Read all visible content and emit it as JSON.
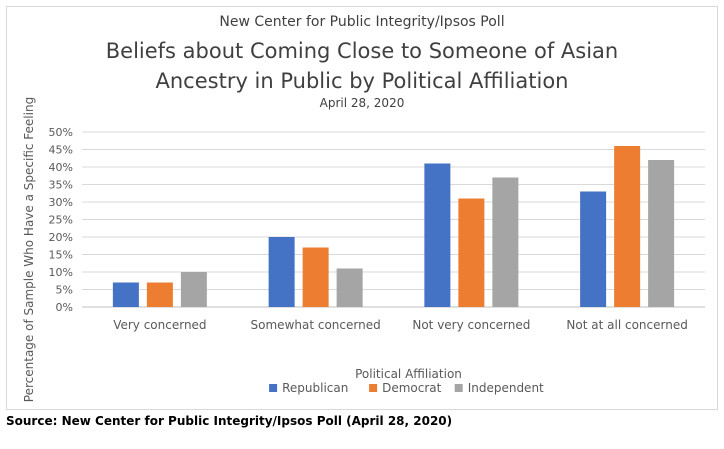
{
  "header": {
    "supertitle": "New Center for Public Integrity/Ipsos Poll",
    "title_line1": "Beliefs about Coming Close to Someone of Asian",
    "title_line2": "Ancestry in Public by Political Affiliation",
    "date": "April 28, 2020"
  },
  "source": "Source: New Center for Public Integrity/Ipsos Poll (April 28, 2020)",
  "chart_data": {
    "type": "bar",
    "title": "Beliefs about Coming Close to Someone of Asian Ancestry in Public by Political Affiliation",
    "subtitle": "April 28, 2020",
    "xlabel": "Political Affiliation",
    "ylabel": "Percentage of Sample Who Have a Specific Feeling",
    "categories": [
      "Very concerned",
      "Somewhat concerned",
      "Not very concerned",
      "Not at all concerned"
    ],
    "series": [
      {
        "name": "Republican",
        "values": [
          7,
          20,
          41,
          33
        ],
        "color": "#4472C4"
      },
      {
        "name": "Democrat",
        "values": [
          7,
          17,
          31,
          46
        ],
        "color": "#ED7D31"
      },
      {
        "name": "Independent",
        "values": [
          10,
          11,
          37,
          42
        ],
        "color": "#A5A5A5"
      }
    ],
    "ylim": [
      0,
      50
    ],
    "yticks": [
      "0%",
      "5%",
      "10%",
      "15%",
      "20%",
      "25%",
      "30%",
      "35%",
      "40%",
      "45%",
      "50%"
    ],
    "grid": true,
    "legend": "bottom"
  }
}
